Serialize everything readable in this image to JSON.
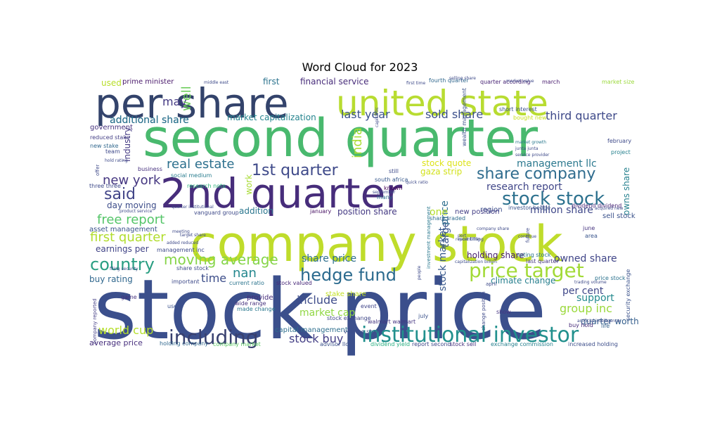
{
  "chart_data": {
    "type": "wordcloud",
    "title": "Word Cloud for 2023",
    "words": [
      {
        "text": "stock price",
        "color": "#3b4f8c"
      },
      {
        "text": "company stock",
        "color": "#bfdc2b"
      },
      {
        "text": "second quarter",
        "color": "#49b96e"
      },
      {
        "text": "2nd quarter",
        "color": "#472d7b"
      },
      {
        "text": "per share",
        "color": "#33436b"
      },
      {
        "text": "united state",
        "color": "#b8dc31"
      },
      {
        "text": "institutional investor",
        "color": "#21908d"
      },
      {
        "text": "price target",
        "color": "#a2da37"
      },
      {
        "text": "stock stock",
        "color": "#2c718e"
      },
      {
        "text": "including",
        "color": "#38406f"
      },
      {
        "text": "share company",
        "color": "#2f6c8e"
      },
      {
        "text": "hedge fund",
        "color": "#2b6a8e"
      },
      {
        "text": "1st quarter",
        "color": "#3e4989"
      },
      {
        "text": "country",
        "color": "#2a9e82"
      },
      {
        "text": "moving average",
        "color": "#86d549"
      },
      {
        "text": "said",
        "color": "#414487"
      },
      {
        "text": "real estate",
        "color": "#2d708e"
      },
      {
        "text": "new york",
        "color": "#453781"
      },
      {
        "text": "free report",
        "color": "#54c568"
      },
      {
        "text": "first quarter",
        "color": "#b1dd2e"
      },
      {
        "text": "management llc",
        "color": "#2a788e"
      },
      {
        "text": "research report",
        "color": "#404688"
      },
      {
        "text": "sold share",
        "color": "#3c508b"
      },
      {
        "text": "third quarter",
        "color": "#3e4989"
      },
      {
        "text": "last year",
        "color": "#3b528b"
      },
      {
        "text": "additional share",
        "color": "#2c728e"
      },
      {
        "text": "market capitalization",
        "color": "#25848e"
      },
      {
        "text": "may",
        "color": "#443983"
      },
      {
        "text": "well",
        "color": "#6ccd5a"
      },
      {
        "text": "india",
        "color": "#aadc32"
      },
      {
        "text": "stock quote",
        "color": "#dde318"
      },
      {
        "text": "gaza strip",
        "color": "#d2e21b"
      },
      {
        "text": "share price",
        "color": "#2e6f8e"
      },
      {
        "text": "position share",
        "color": "#443983"
      },
      {
        "text": "million share",
        "color": "#3f4889"
      },
      {
        "text": "owned share",
        "color": "#404588"
      },
      {
        "text": "owns share",
        "color": "#26818e"
      },
      {
        "text": "nan",
        "color": "#24878e"
      },
      {
        "text": "time",
        "color": "#3d4e8a"
      },
      {
        "text": "include",
        "color": "#3e4c8a"
      },
      {
        "text": "market cap",
        "color": "#90d743"
      },
      {
        "text": "world cup",
        "color": "#b5de2b"
      },
      {
        "text": "stock buy",
        "color": "#433e85"
      },
      {
        "text": "per cent",
        "color": "#3f4788"
      },
      {
        "text": "support",
        "color": "#23898e"
      },
      {
        "text": "group inc",
        "color": "#9bd93c"
      },
      {
        "text": "quarter worth",
        "color": "#355f8d"
      },
      {
        "text": "climate change",
        "color": "#277f8e"
      },
      {
        "text": "holding share",
        "color": "#481f70"
      },
      {
        "text": "stock market",
        "color": "#38598c"
      },
      {
        "text": "target",
        "color": "#3a548c"
      },
      {
        "text": "price",
        "color": "#2e6e8e"
      },
      {
        "text": "one",
        "color": "#b5de2b"
      },
      {
        "text": "addition",
        "color": "#2a768e"
      },
      {
        "text": "work",
        "color": "#a8db34"
      },
      {
        "text": "earnings per",
        "color": "#414487"
      },
      {
        "text": "buy rating",
        "color": "#31688e"
      },
      {
        "text": "average price",
        "color": "#472f7d"
      },
      {
        "text": "capital management",
        "color": "#2e6f8e"
      },
      {
        "text": "asset management",
        "color": "#3a538b"
      },
      {
        "text": "financial service",
        "color": "#472c7a"
      },
      {
        "text": "first",
        "color": "#2c738e"
      },
      {
        "text": "government",
        "color": "#46327e"
      },
      {
        "text": "industry",
        "color": "#443a83"
      },
      {
        "text": "additional share",
        "color": "#2c728e"
      },
      {
        "text": "prime minister",
        "color": "#48186a"
      },
      {
        "text": "used",
        "color": "#b8de29"
      },
      {
        "text": "reduced stake",
        "color": "#433e85"
      },
      {
        "text": "new stake",
        "color": "#31688e"
      },
      {
        "text": "team",
        "color": "#3e4989"
      },
      {
        "text": "business",
        "color": "#46307e"
      },
      {
        "text": "social medium",
        "color": "#287c8e"
      },
      {
        "text": "research note",
        "color": "#2fb47c"
      },
      {
        "text": "south africa",
        "color": "#38598c"
      },
      {
        "text": "known",
        "color": "#440154"
      },
      {
        "text": "still",
        "color": "#3e4a89"
      },
      {
        "text": "region",
        "color": "#3d4d8a"
      },
      {
        "text": "investor hedge",
        "color": "#3a548c"
      },
      {
        "text": "dividend dividend",
        "color": "#482576"
      },
      {
        "text": "sell stock",
        "color": "#3b528b"
      },
      {
        "text": "rating stock",
        "color": "#2a768e"
      },
      {
        "text": "last quarter",
        "color": "#453781"
      },
      {
        "text": "new position",
        "color": "#433e85"
      },
      {
        "text": "share traded",
        "color": "#2f6c8e"
      },
      {
        "text": "january",
        "color": "#471063"
      },
      {
        "text": "many",
        "color": "#2e6e8e"
      },
      {
        "text": "day moving",
        "color": "#3d4d8a"
      },
      {
        "text": "provide",
        "color": "#472d7b"
      },
      {
        "text": "made change",
        "color": "#2a788e"
      },
      {
        "text": "stake share",
        "color": "#c2df23"
      },
      {
        "text": "stock exchange",
        "color": "#3f4788"
      },
      {
        "text": "walmart walmart",
        "color": "#453581"
      },
      {
        "text": "volume share",
        "color": "#3e4c8a"
      },
      {
        "text": "holding company",
        "color": "#31688e"
      },
      {
        "text": "company market",
        "color": "#5cc863"
      },
      {
        "text": "advisor llc",
        "color": "#3b528b"
      },
      {
        "text": "dividend yield",
        "color": "#28ae80"
      },
      {
        "text": "report second",
        "color": "#3f4788"
      },
      {
        "text": "stock sell",
        "color": "#46327e"
      },
      {
        "text": "exchange commission",
        "color": "#27808e"
      },
      {
        "text": "increased holding",
        "color": "#3d4e8a"
      },
      {
        "text": "buy hold",
        "color": "#472c7a"
      },
      {
        "text": "show",
        "color": "#463480"
      },
      {
        "text": "life",
        "color": "#34618d"
      },
      {
        "text": "fourth quarter",
        "color": "#31688e"
      },
      {
        "text": "quarter according",
        "color": "#482475"
      },
      {
        "text": "march",
        "color": "#481c6e"
      },
      {
        "text": "market size",
        "color": "#9bd93c"
      },
      {
        "text": "february",
        "color": "#3e4a89"
      },
      {
        "text": "project",
        "color": "#26818e"
      },
      {
        "text": "short interest",
        "color": "#3b528b"
      },
      {
        "text": "bought new",
        "color": "#c8e020"
      },
      {
        "text": "wealth management",
        "color": "#3b528b"
      },
      {
        "text": "market growth",
        "color": "#2a788e"
      },
      {
        "text": "june",
        "color": "#46337f"
      },
      {
        "text": "area",
        "color": "#39558c"
      },
      {
        "text": "current ratio",
        "color": "#2b748e"
      },
      {
        "text": "stock valued",
        "color": "#482979"
      },
      {
        "text": "wide range",
        "color": "#46327e"
      },
      {
        "text": "important",
        "color": "#3e4a89"
      },
      {
        "text": "game",
        "color": "#46327e"
      },
      {
        "text": "use",
        "color": "#3b528b"
      },
      {
        "text": "company reported",
        "color": "#433e85"
      },
      {
        "text": "security exchange",
        "color": "#3b528b"
      },
      {
        "text": "price stock",
        "color": "#2c728e"
      },
      {
        "text": "event",
        "color": "#404588"
      },
      {
        "text": "july",
        "color": "#3b528b"
      },
      {
        "text": "change position",
        "color": "#3e4a89"
      },
      {
        "text": "investment management",
        "color": "#2a788e"
      },
      {
        "text": "capitalization billion",
        "color": "#3d4e8a"
      },
      {
        "text": "future",
        "color": "#3e4a89"
      },
      {
        "text": "continue",
        "color": "#3e4a89"
      },
      {
        "text": "report filing",
        "color": "#3b528b"
      },
      {
        "text": "middle east",
        "color": "#3e4a89"
      },
      {
        "text": "service provider",
        "color": "#3e4a89"
      },
      {
        "text": "junta junta",
        "color": "#3e4a89"
      },
      {
        "text": "acquired new",
        "color": "#3e4a89"
      },
      {
        "text": "quarter institutional",
        "color": "#3e4a89"
      },
      {
        "text": "vanguard group",
        "color": "#3e4a89"
      },
      {
        "text": "product service",
        "color": "#3e4a89"
      },
      {
        "text": "meeting",
        "color": "#3e4a89"
      },
      {
        "text": "filing security",
        "color": "#3e4a89"
      },
      {
        "text": "management inc",
        "color": "#3e4a89"
      },
      {
        "text": "added reduced",
        "color": "#3e4a89"
      },
      {
        "text": "share stock",
        "color": "#3e4a89"
      },
      {
        "text": "offer",
        "color": "#3e4a89"
      },
      {
        "text": "three three",
        "color": "#3e4a89"
      },
      {
        "text": "hold rating",
        "color": "#3e4a89"
      },
      {
        "text": "september",
        "color": "#3e4a89"
      },
      {
        "text": "people",
        "color": "#3e4a89"
      },
      {
        "text": "april",
        "color": "#3e4a89"
      },
      {
        "text": "port",
        "color": "#3e4a89"
      },
      {
        "text": "quick ratio",
        "color": "#3e4a89"
      },
      {
        "text": "capital llc",
        "color": "#3e4a89"
      },
      {
        "text": "first time",
        "color": "#3e4a89"
      },
      {
        "text": "company share",
        "color": "#3e4a89"
      },
      {
        "text": "artificial intelligence",
        "color": "#3e4a89"
      },
      {
        "text": "trading volume",
        "color": "#3e4a89"
      },
      {
        "text": "recent filing",
        "color": "#3e4a89"
      },
      {
        "text": "target share",
        "color": "#3e4a89"
      },
      {
        "text": "selling share",
        "color": "#3e4a89"
      },
      {
        "text": "market value",
        "color": "#3e4a89"
      }
    ]
  }
}
